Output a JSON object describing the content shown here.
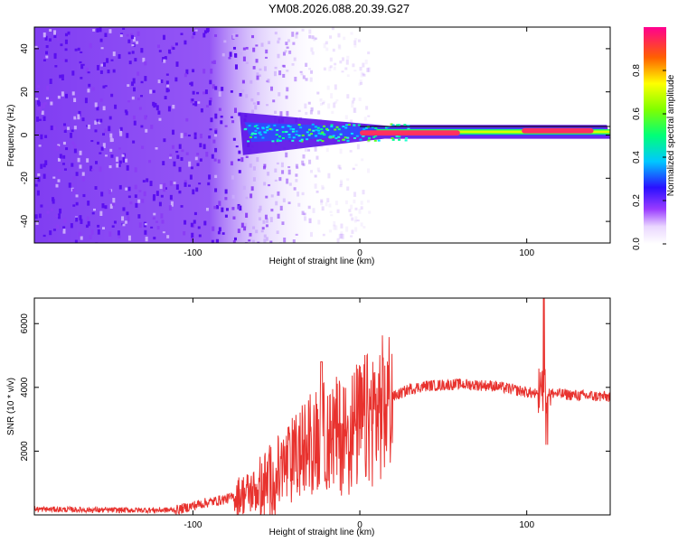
{
  "title": "YM08.2026.088.20.39.G27",
  "colors": {
    "trace": "#e8322e",
    "axis": "#000000",
    "noise": "#6a1bf0"
  },
  "chart_data": [
    {
      "type": "heatmap",
      "name": "spectrogram",
      "xlabel": "Height of straight line (km)",
      "ylabel": "Frequency (Hz)",
      "xlim": [
        -195,
        150
      ],
      "ylim": [
        -50,
        50
      ],
      "xticks": [
        -100,
        0,
        100
      ],
      "yticks": [
        -40,
        -20,
        0,
        20,
        40
      ],
      "colorbar": {
        "label": "Normalized spectral amplitude",
        "range": [
          0,
          1
        ],
        "ticks": [
          "0.0",
          "0.2",
          "0.4",
          "0.6",
          "0.8"
        ],
        "tick_values": [
          0.0,
          0.2,
          0.4,
          0.6,
          0.8
        ]
      },
      "signal": {
        "center_frequency_hz": 1.5,
        "onset_km": -72,
        "noise_region_km": [
          -195,
          -20
        ],
        "peaks": [
          {
            "x_start": 97,
            "x_end": 140,
            "frequency_hz": 2,
            "amplitude": 0.95
          },
          {
            "x_start": 0,
            "x_end": 60,
            "frequency_hz": 1,
            "amplitude": 0.8
          }
        ]
      }
    },
    {
      "type": "line",
      "name": "snr",
      "xlabel": "Height of straight line (km)",
      "ylabel": "SNR (10 * v/v)",
      "xlim": [
        -195,
        150
      ],
      "ylim": [
        0,
        6800
      ],
      "xticks": [
        -100,
        0,
        100
      ],
      "yticks": [
        2000,
        4000,
        6000
      ],
      "series": [
        {
          "name": "SNR",
          "x": [
            -195,
            -150,
            -110,
            -95,
            -80,
            -70,
            -60,
            -50,
            -40,
            -30,
            -20,
            -10,
            0,
            10,
            20,
            30,
            40,
            60,
            80,
            95,
            105,
            112,
            118,
            130,
            150
          ],
          "values": [
            180,
            150,
            150,
            350,
            500,
            650,
            800,
            1200,
            1700,
            2200,
            2500,
            2500,
            2800,
            3200,
            3700,
            3950,
            4050,
            4100,
            4050,
            3900,
            3800,
            3850,
            3800,
            3750,
            3700
          ]
        }
      ],
      "spikes": [
        {
          "x": -23,
          "value": 4800
        },
        {
          "x": 110,
          "value": 6800
        },
        {
          "x": 112,
          "value": 2200
        }
      ]
    }
  ]
}
